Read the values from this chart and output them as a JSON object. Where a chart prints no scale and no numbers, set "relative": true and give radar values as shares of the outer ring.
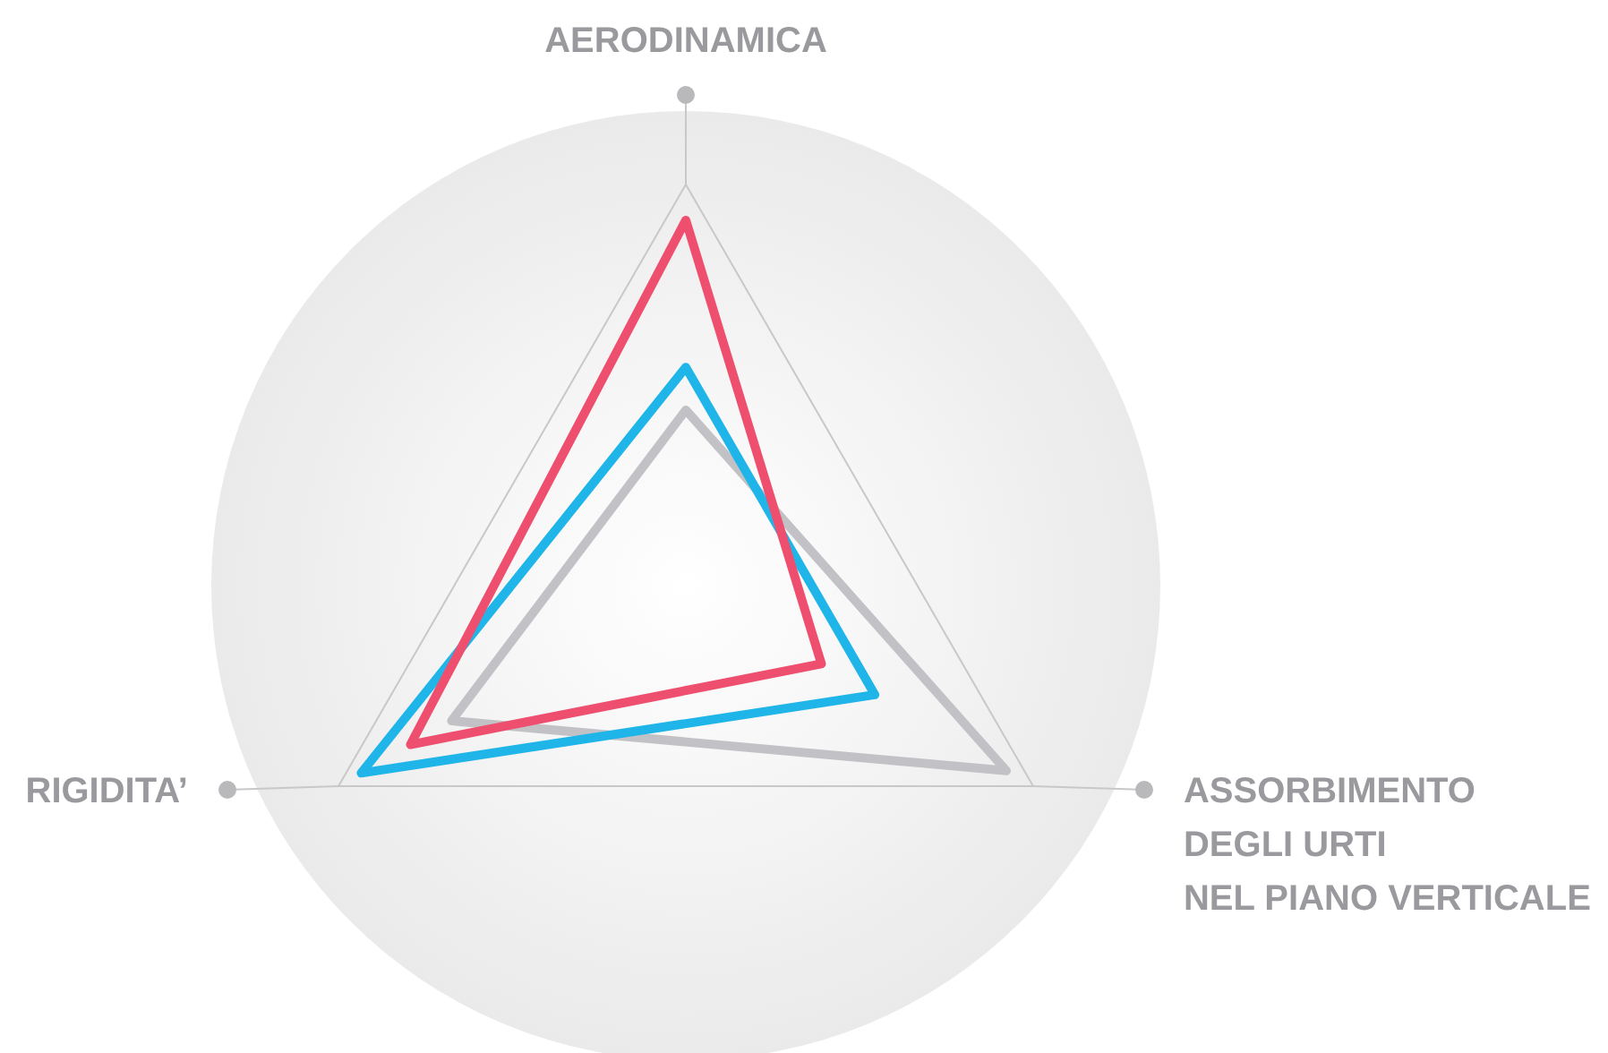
{
  "chart_data": {
    "type": "radar",
    "relative": true,
    "grid": true,
    "categories": [
      "AERODINAMICA",
      "ASSORBIMENTO\nDEGLI URTI\nNEL PIANO VERTICALE",
      "RIGIDITA’"
    ],
    "series": [
      {
        "color": "#c2c2c6",
        "values": [
          0.37,
          0.78,
          0.57
        ]
      },
      {
        "color": "#1fb5e8",
        "values": [
          0.46,
          0.46,
          0.79
        ]
      },
      {
        "color": "#ee4f6e",
        "values": [
          0.77,
          0.33,
          0.67
        ]
      }
    ]
  }
}
